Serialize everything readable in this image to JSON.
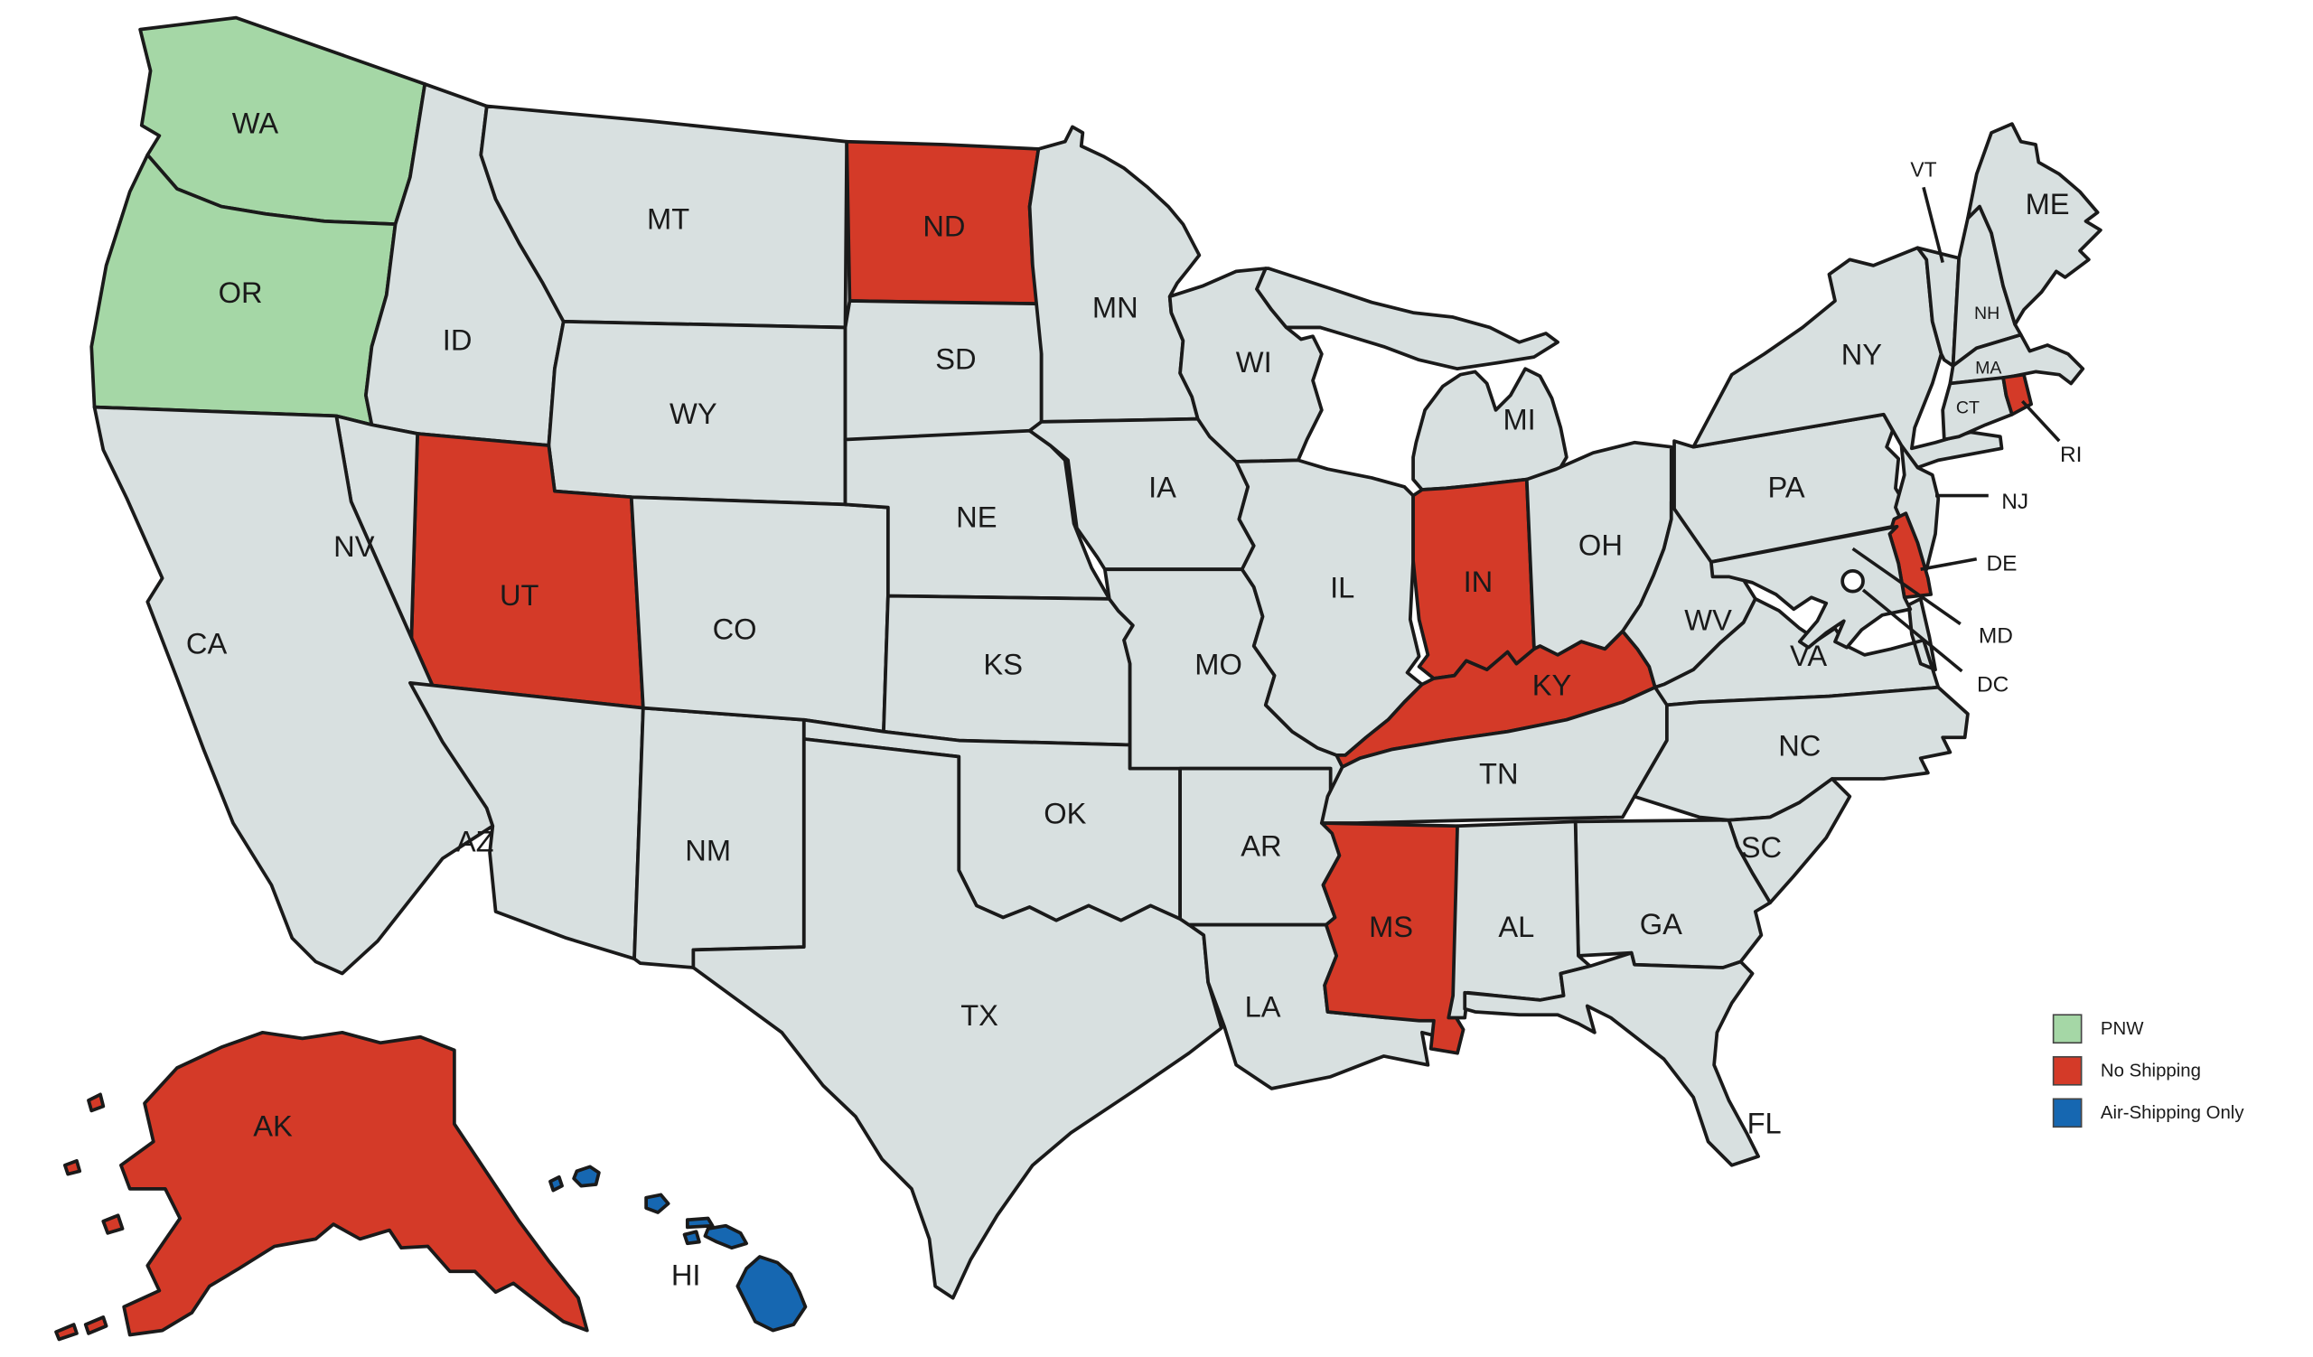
{
  "map": {
    "background": "#ffffff",
    "default_fill": "#d8e0e0",
    "stroke_color": "#1a1a1a",
    "label_color": "#1a1a1a",
    "status_colors": {
      "pnw": "#a5d7a6",
      "no_shipping": "#d43a28",
      "air_only": "#1667b1"
    },
    "states": [
      {
        "id": "WA",
        "label": "WA",
        "status": "pnw"
      },
      {
        "id": "OR",
        "label": "OR",
        "status": "pnw"
      },
      {
        "id": "ID",
        "label": "ID",
        "status": "default"
      },
      {
        "id": "MT",
        "label": "MT",
        "status": "default"
      },
      {
        "id": "WY",
        "label": "WY",
        "status": "default"
      },
      {
        "id": "UT",
        "label": "UT",
        "status": "no_shipping"
      },
      {
        "id": "NV",
        "label": "NV",
        "status": "default"
      },
      {
        "id": "CA",
        "label": "CA",
        "status": "default"
      },
      {
        "id": "AZ",
        "label": "AZ",
        "status": "default"
      },
      {
        "id": "NM",
        "label": "NM",
        "status": "default"
      },
      {
        "id": "CO",
        "label": "CO",
        "status": "default"
      },
      {
        "id": "ND",
        "label": "ND",
        "status": "no_shipping"
      },
      {
        "id": "SD",
        "label": "SD",
        "status": "default"
      },
      {
        "id": "NE",
        "label": "NE",
        "status": "default"
      },
      {
        "id": "KS",
        "label": "KS",
        "status": "default"
      },
      {
        "id": "OK",
        "label": "OK",
        "status": "default"
      },
      {
        "id": "TX",
        "label": "TX",
        "status": "default"
      },
      {
        "id": "MN",
        "label": "MN",
        "status": "default"
      },
      {
        "id": "IA",
        "label": "IA",
        "status": "default"
      },
      {
        "id": "MO",
        "label": "MO",
        "status": "default"
      },
      {
        "id": "AR",
        "label": "AR",
        "status": "default"
      },
      {
        "id": "LA",
        "label": "LA",
        "status": "default"
      },
      {
        "id": "MS",
        "label": "MS",
        "status": "no_shipping"
      },
      {
        "id": "WI",
        "label": "WI",
        "status": "default"
      },
      {
        "id": "MI",
        "label": "MI",
        "status": "default"
      },
      {
        "id": "IL",
        "label": "IL",
        "status": "default"
      },
      {
        "id": "IN",
        "label": "IN",
        "status": "no_shipping"
      },
      {
        "id": "OH",
        "label": "OH",
        "status": "default"
      },
      {
        "id": "KY",
        "label": "KY",
        "status": "no_shipping"
      },
      {
        "id": "TN",
        "label": "TN",
        "status": "default"
      },
      {
        "id": "WV",
        "label": "WV",
        "status": "default"
      },
      {
        "id": "VA",
        "label": "VA",
        "status": "default"
      },
      {
        "id": "NC",
        "label": "NC",
        "status": "default"
      },
      {
        "id": "SC",
        "label": "SC",
        "status": "default"
      },
      {
        "id": "GA",
        "label": "GA",
        "status": "default"
      },
      {
        "id": "AL",
        "label": "AL",
        "status": "default"
      },
      {
        "id": "FL",
        "label": "FL",
        "status": "default"
      },
      {
        "id": "PA",
        "label": "PA",
        "status": "default"
      },
      {
        "id": "NY",
        "label": "NY",
        "status": "default"
      },
      {
        "id": "VT",
        "label": "VT",
        "status": "default"
      },
      {
        "id": "NH",
        "label": "NH",
        "status": "default"
      },
      {
        "id": "ME",
        "label": "ME",
        "status": "default"
      },
      {
        "id": "MA",
        "label": "MA",
        "status": "default"
      },
      {
        "id": "CT",
        "label": "CT",
        "status": "default"
      },
      {
        "id": "RI",
        "label": "RI",
        "status": "no_shipping"
      },
      {
        "id": "NJ",
        "label": "NJ",
        "status": "default"
      },
      {
        "id": "DE",
        "label": "DE",
        "status": "no_shipping"
      },
      {
        "id": "MD",
        "label": "MD",
        "status": "default"
      },
      {
        "id": "AK",
        "label": "AK",
        "status": "no_shipping"
      },
      {
        "id": "HI",
        "label": "HI",
        "status": "air_only"
      },
      {
        "id": "DC",
        "label": "DC",
        "status": "default"
      }
    ]
  },
  "legend": {
    "items": [
      {
        "key": "pnw",
        "label": "PNW",
        "color": "#a5d7a6"
      },
      {
        "key": "no_shipping",
        "label": "No Shipping",
        "color": "#d43a28"
      },
      {
        "key": "air_only",
        "label": "Air-Shipping Only",
        "color": "#1667b1"
      }
    ]
  }
}
